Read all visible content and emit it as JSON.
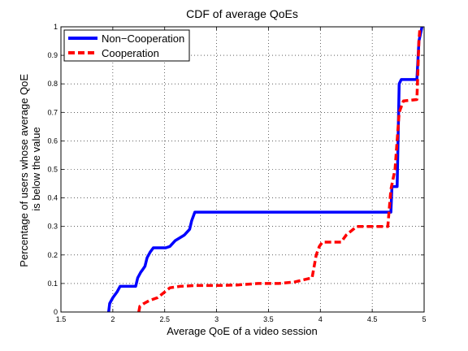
{
  "chart_data": {
    "type": "line",
    "title": "CDF of average QoEs",
    "xlabel": "Average QoE of a video session",
    "ylabel": [
      "Percentage of users whose average QoE",
      "is below the value"
    ],
    "xlim": [
      1.5,
      5
    ],
    "ylim": [
      0,
      1
    ],
    "xticks": [
      "1.5",
      "2",
      "2.5",
      "3",
      "3.5",
      "4",
      "4.5",
      "5"
    ],
    "yticks": [
      "0",
      "0.1",
      "0.2",
      "0.3",
      "0.4",
      "0.5",
      "0.6",
      "0.7",
      "0.8",
      "0.9",
      "1"
    ],
    "grid": true,
    "legend_position": "top-left",
    "series": [
      {
        "name": "Non−Cooperation",
        "color": "#0000ff",
        "style": "solid",
        "points": [
          [
            1.96,
            0
          ],
          [
            1.97,
            0.03
          ],
          [
            2.0,
            0.05
          ],
          [
            2.04,
            0.07
          ],
          [
            2.07,
            0.09
          ],
          [
            2.22,
            0.09
          ],
          [
            2.24,
            0.12
          ],
          [
            2.27,
            0.14
          ],
          [
            2.29,
            0.15
          ],
          [
            2.31,
            0.16
          ],
          [
            2.33,
            0.19
          ],
          [
            2.36,
            0.21
          ],
          [
            2.38,
            0.22
          ],
          [
            2.39,
            0.225
          ],
          [
            2.51,
            0.225
          ],
          [
            2.55,
            0.23
          ],
          [
            2.6,
            0.25
          ],
          [
            2.69,
            0.27
          ],
          [
            2.74,
            0.29
          ],
          [
            2.76,
            0.32
          ],
          [
            2.79,
            0.35
          ],
          [
            4.68,
            0.35
          ],
          [
            4.69,
            0.44
          ],
          [
            4.74,
            0.44
          ],
          [
            4.76,
            0.8
          ],
          [
            4.78,
            0.815
          ],
          [
            4.93,
            0.815
          ],
          [
            4.95,
            0.95
          ],
          [
            4.98,
            1.0
          ]
        ]
      },
      {
        "name": "Cooperation",
        "color": "#ff0000",
        "style": "dashed",
        "points": [
          [
            2.25,
            0
          ],
          [
            2.26,
            0.02
          ],
          [
            2.3,
            0.03
          ],
          [
            2.35,
            0.04
          ],
          [
            2.43,
            0.05
          ],
          [
            2.5,
            0.07
          ],
          [
            2.55,
            0.085
          ],
          [
            2.65,
            0.09
          ],
          [
            2.8,
            0.093
          ],
          [
            3.0,
            0.093
          ],
          [
            3.2,
            0.095
          ],
          [
            3.4,
            0.1
          ],
          [
            3.6,
            0.1
          ],
          [
            3.75,
            0.105
          ],
          [
            3.92,
            0.12
          ],
          [
            3.96,
            0.2
          ],
          [
            3.99,
            0.23
          ],
          [
            4.02,
            0.245
          ],
          [
            4.2,
            0.245
          ],
          [
            4.25,
            0.27
          ],
          [
            4.35,
            0.3
          ],
          [
            4.65,
            0.3
          ],
          [
            4.68,
            0.43
          ],
          [
            4.72,
            0.5
          ],
          [
            4.76,
            0.7
          ],
          [
            4.8,
            0.74
          ],
          [
            4.93,
            0.745
          ],
          [
            4.95,
            0.95
          ],
          [
            4.96,
            1.0
          ]
        ]
      }
    ]
  }
}
